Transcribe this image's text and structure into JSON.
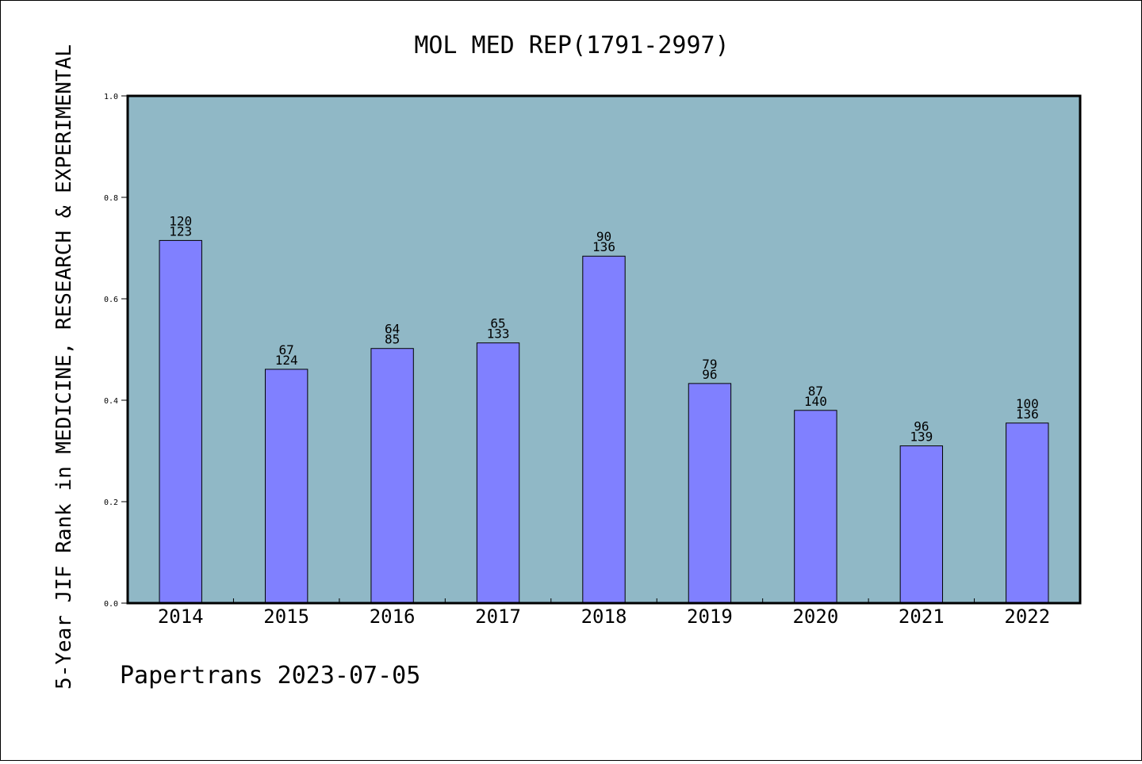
{
  "footer": "Papertrans 2023-07-05",
  "chart_data": {
    "type": "bar",
    "title": "MOL MED REP(1791-2997)",
    "xlabel": "",
    "ylabel": "5-Year JIF Rank in MEDICINE, RESEARCH & EXPERIMENTAL",
    "ylim": [
      0,
      1.0
    ],
    "yticks": [
      "0.0",
      "0.2",
      "0.4",
      "0.6",
      "0.8",
      "1.0"
    ],
    "grid": false,
    "colors": {
      "plot_background": "#90b8c6",
      "bar": "#8080ff",
      "bar_edge": "#000000"
    },
    "categories": [
      "2014",
      "2015",
      "2016",
      "2017",
      "2018",
      "2019",
      "2020",
      "2021",
      "2022"
    ],
    "values": [
      0.715,
      0.461,
      0.502,
      0.513,
      0.684,
      0.433,
      0.38,
      0.31,
      0.355
    ],
    "label_rank": [
      "120",
      "67",
      "64",
      "65",
      "90",
      "79",
      "87",
      "96",
      "100"
    ],
    "label_total": [
      "123",
      "124",
      "85",
      "133",
      "136",
      "96",
      "140",
      "139",
      "136"
    ]
  }
}
